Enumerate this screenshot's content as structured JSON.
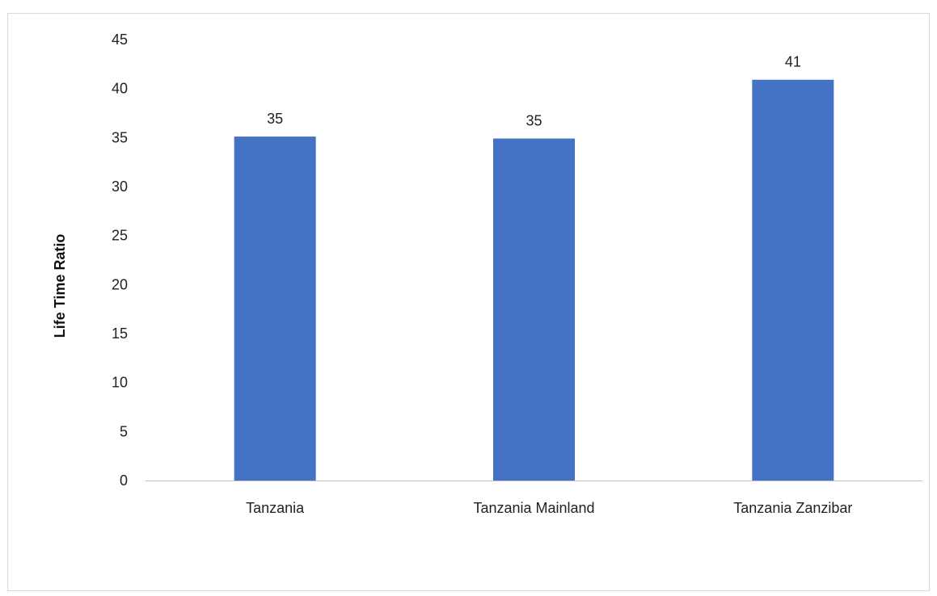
{
  "chart_data": {
    "type": "bar",
    "title": "",
    "xlabel": "",
    "ylabel": "Life Time Ratio",
    "categories": [
      "Tanzania",
      "Tanzania Mainland",
      "Tanzania Zanzibar"
    ],
    "values": [
      35.1,
      34.9,
      40.9
    ],
    "data_labels": [
      "35",
      "35",
      "41"
    ],
    "ylim": [
      0,
      45
    ],
    "y_ticks": [
      0,
      5,
      10,
      15,
      20,
      25,
      30,
      35,
      40,
      45
    ],
    "grid": false,
    "legend": "none",
    "bar_color": "#4472C4"
  }
}
